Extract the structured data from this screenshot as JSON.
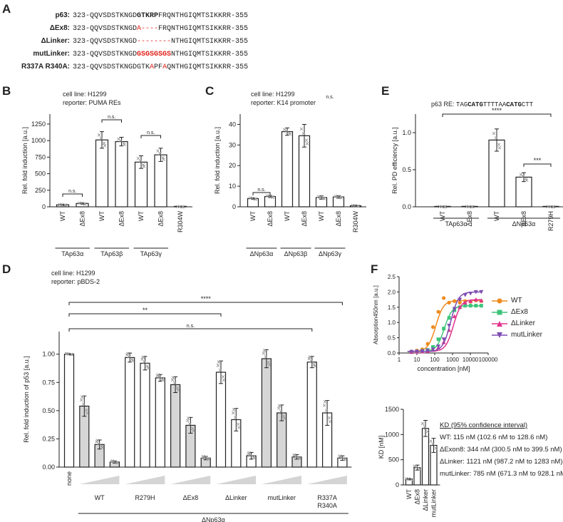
{
  "panels": {
    "A": "A",
    "B": "B",
    "C": "C",
    "D": "D",
    "E": "E",
    "F": "F"
  },
  "sequences": [
    {
      "label": "p63:",
      "segments": [
        {
          "t": "323-QQVSDSTKNGD",
          "s": ""
        },
        {
          "t": "GTKRP",
          "s": "bold"
        },
        {
          "t": "FRQNTHGIQMTSIKKRR-355",
          "s": ""
        }
      ]
    },
    {
      "label": "ΔEx8:",
      "segments": [
        {
          "t": "323-QQVSDSTKNGD",
          "s": ""
        },
        {
          "t": "A----",
          "s": "red"
        },
        {
          "t": "FRQNTHGIQMTSIKKRR-355",
          "s": ""
        }
      ]
    },
    {
      "label": "ΔLinker:",
      "segments": [
        {
          "t": "323-QQVSDSTKNGD",
          "s": ""
        },
        {
          "t": "--------",
          "s": "red"
        },
        {
          "t": "NTHGIQMTSIKKRR-355",
          "s": ""
        }
      ]
    },
    {
      "label": "mutLinker:",
      "segments": [
        {
          "t": "323-QQVSDSTKNGD",
          "s": ""
        },
        {
          "t": "GSGSGSGS",
          "s": "redbold"
        },
        {
          "t": "NTHGIQMTSIKKRR-355",
          "s": ""
        }
      ]
    },
    {
      "label": "R337A R340A:",
      "segments": [
        {
          "t": "323-QQVSDSTKNGDGTK",
          "s": ""
        },
        {
          "t": "A",
          "s": "red"
        },
        {
          "t": "PF",
          "s": ""
        },
        {
          "t": "A",
          "s": "red"
        },
        {
          "t": "QNTHGIQMTSIKKRR-355",
          "s": ""
        }
      ]
    }
  ],
  "notes": {
    "B": [
      "cell line: H1299",
      "reporter: PUMA REs"
    ],
    "C": [
      "cell line: H1299",
      "reporter: K14 promoter"
    ],
    "D": [
      "cell line: H1299",
      "reporter: pBDS-2"
    ],
    "E_prefix": "p63 RE:",
    "E_seq": [
      {
        "t": "TAG",
        "b": false
      },
      {
        "t": "CATG",
        "b": true
      },
      {
        "t": "TTTTAA",
        "b": false
      },
      {
        "t": "CATG",
        "b": true
      },
      {
        "t": "CTT",
        "b": false
      }
    ]
  },
  "kd_note": {
    "title": "KD (95% confidence interval)",
    "lines": [
      "WT: 115 nM (102.6 nM to 128.6 nM)",
      "ΔExon8: 344 nM (300.5 nM to 399.5 nM)",
      "ΔLinker: 1121 nM (987.2 nM to 1283 nM)",
      "mutLinker: 785 nM (671.3 nM to 928.1 nM)"
    ]
  },
  "colors": {
    "wt": "#ef8a1f",
    "dex8": "#3ec47a",
    "dlinker": "#e0338c",
    "mutlinker": "#7e4cb3",
    "grey": "#d6d6d6",
    "sig": "#222222"
  },
  "chart_data": [
    {
      "id": "B",
      "type": "bar",
      "ylabel": "Rel. fold induction [a.u.]",
      "ylim": [
        0,
        1400
      ],
      "yticks": [
        0,
        250,
        500,
        750,
        1000,
        1250
      ],
      "categories": [
        "WT",
        "ΔEx8",
        "WT",
        "ΔEx8",
        "WT",
        "ΔEx8",
        "R304W"
      ],
      "values": [
        30,
        50,
        1010,
        985,
        675,
        785,
        0
      ],
      "errors": [
        8,
        12,
        125,
        65,
        95,
        100,
        0
      ],
      "groups": [
        {
          "label": "TAp63α",
          "from": 0,
          "to": 1
        },
        {
          "label": "TAp63β",
          "from": 2,
          "to": 3
        },
        {
          "label": "TAp63γ",
          "from": 4,
          "to": 5
        }
      ],
      "sig": [
        {
          "a": 0,
          "b": 1,
          "label": "n.s."
        },
        {
          "a": 2,
          "b": 3,
          "label": "n.s."
        },
        {
          "a": 4,
          "b": 5,
          "label": "n.s."
        }
      ]
    },
    {
      "id": "C",
      "type": "bar",
      "ylabel": "Rel. fold induction [a.u.]",
      "ylim": [
        0,
        45
      ],
      "yticks": [
        0,
        10,
        20,
        30,
        40
      ],
      "categories": [
        "WT",
        "ΔEx8",
        "WT",
        "ΔEx8",
        "WT",
        "ΔEx8",
        "R304W"
      ],
      "values": [
        4,
        5,
        36.5,
        34.5,
        4.5,
        4.8,
        0.5
      ],
      "errors": [
        0.4,
        0.5,
        1.8,
        5.5,
        0.8,
        0.6,
        0.3
      ],
      "groups": [
        {
          "label": "ΔNp63α",
          "from": 0,
          "to": 1
        },
        {
          "label": "ΔNp63β",
          "from": 2,
          "to": 3
        },
        {
          "label": "ΔNp63γ",
          "from": 4,
          "to": 5
        }
      ],
      "sig": [
        {
          "a": 0,
          "b": 1,
          "label": "n.s."
        },
        {
          "a": 4,
          "b": 5,
          "label": "n.s."
        }
      ]
    },
    {
      "id": "E",
      "type": "bar",
      "ylabel": "Rel. PD efficiency [a.u.]",
      "ylim": [
        0,
        1.25
      ],
      "yticks": [
        0.0,
        0.5,
        1.0
      ],
      "categories": [
        "WT",
        "ΔEx8",
        "WT",
        "ΔEx8",
        "R279H"
      ],
      "values": [
        0,
        0,
        0.9,
        0.4,
        0
      ],
      "errors": [
        0,
        0,
        0.15,
        0.06,
        0
      ],
      "groups": [
        {
          "label": "TAp63α",
          "from": 0,
          "to": 1
        },
        {
          "label": "ΔNp63α",
          "from": 2,
          "to": 4
        }
      ],
      "sig": [
        {
          "a": 0,
          "b": 4,
          "label": "****"
        },
        {
          "a": 3,
          "b": 4,
          "label": "***"
        }
      ]
    },
    {
      "id": "D",
      "type": "bar",
      "ylabel": "Rel. fold induction of p53 [a.u.]",
      "ylim": [
        0,
        1.2
      ],
      "yticks": [
        0.0,
        0.25,
        0.5,
        0.75,
        1.0
      ],
      "values": [
        1.0,
        0.54,
        0.2,
        0.045,
        0.97,
        0.92,
        0.79,
        0.73,
        0.37,
        0.08,
        0.84,
        0.42,
        0.1,
        0.96,
        0.48,
        0.09,
        0.93,
        0.48,
        0.08
      ],
      "errors": [
        0.005,
        0.09,
        0.04,
        0.01,
        0.04,
        0.06,
        0.03,
        0.07,
        0.07,
        0.015,
        0.1,
        0.1,
        0.03,
        0.08,
        0.07,
        0.02,
        0.05,
        0.11,
        0.02
      ],
      "shaded": [
        false,
        true,
        true,
        true,
        false,
        false,
        false,
        true,
        true,
        true,
        false,
        false,
        false,
        true,
        true,
        true,
        false,
        false,
        false
      ],
      "conditions": [
        {
          "label": "none",
          "from": 0,
          "to": 0
        },
        {
          "label": "WT",
          "from": 1,
          "to": 3
        },
        {
          "label": "R279H",
          "from": 4,
          "to": 6
        },
        {
          "label": "ΔEx8",
          "from": 7,
          "to": 9
        },
        {
          "label": "ΔLinker",
          "from": 10,
          "to": 12
        },
        {
          "label": "mutLinker",
          "from": 13,
          "to": 15
        },
        {
          "label": "R337A\nR340A",
          "from": 16,
          "to": 18
        }
      ],
      "group_label": "ΔNp63α",
      "sig": [
        {
          "a": 0,
          "b": 18,
          "label": "****"
        },
        {
          "a": 0,
          "b": 10,
          "label": "**"
        },
        {
          "a": 0,
          "b": 16,
          "label": "n.s."
        }
      ]
    },
    {
      "id": "F1",
      "type": "line",
      "xlabel": "concentration [nM]",
      "ylabel": "Absorption450nm [a.u.]",
      "xscale": "log",
      "xlim": [
        1,
        100000
      ],
      "ylim": [
        0,
        2.5
      ],
      "xticks": [
        1,
        10,
        100,
        1000,
        10000,
        100000
      ],
      "xticklabels": [
        "1",
        "10",
        "100",
        "1000",
        "10000",
        "100000"
      ],
      "yticks": [
        0.0,
        0.5,
        1.0,
        1.5,
        2.0,
        2.5
      ],
      "x": [
        5,
        10,
        20,
        40,
        80,
        160,
        320,
        640,
        1280,
        2560,
        5120,
        10240,
        20480,
        40960
      ],
      "series": [
        {
          "name": "WT",
          "key": "wt",
          "marker": "circle",
          "kd": 115,
          "top": 1.72,
          "bottom": 0.05,
          "values": [
            0.05,
            0.08,
            0.12,
            0.3,
            0.85,
            1.35,
            1.8,
            1.65,
            1.7,
            1.65,
            1.7,
            1.68,
            1.72,
            1.7
          ]
        },
        {
          "name": "ΔEx8",
          "key": "dex8",
          "marker": "square",
          "kd": 344,
          "top": 1.55,
          "bottom": 0.05,
          "values": [
            0.04,
            0.05,
            0.07,
            0.1,
            0.2,
            0.45,
            0.8,
            1.15,
            1.4,
            1.5,
            1.55,
            1.55,
            1.55,
            1.55
          ]
        },
        {
          "name": "ΔLinker",
          "key": "dlinker",
          "marker": "triangle-up",
          "kd": 1121,
          "top": 1.75,
          "bottom": 0.05,
          "values": [
            0.03,
            0.04,
            0.05,
            0.06,
            0.1,
            0.18,
            0.35,
            0.75,
            1.2,
            1.5,
            1.65,
            1.7,
            1.75,
            1.72
          ]
        },
        {
          "name": "mutLinker",
          "key": "mutlinker",
          "marker": "triangle-down",
          "kd": 785,
          "top": 2.0,
          "bottom": 0.05,
          "values": [
            0.04,
            0.05,
            0.06,
            0.08,
            0.12,
            0.22,
            0.45,
            0.9,
            1.45,
            1.75,
            1.9,
            1.95,
            2.0,
            2.0
          ]
        }
      ]
    },
    {
      "id": "F2",
      "type": "bar",
      "ylabel": "KD [nM]",
      "ylim": [
        0,
        1500
      ],
      "yticks": [
        0,
        500,
        1000,
        1500
      ],
      "categories": [
        "WT",
        "ΔEx8",
        "ΔLinker",
        "mutLinker"
      ],
      "values": [
        115,
        344,
        1121,
        785
      ],
      "errors": [
        14,
        50,
        160,
        140
      ]
    }
  ]
}
